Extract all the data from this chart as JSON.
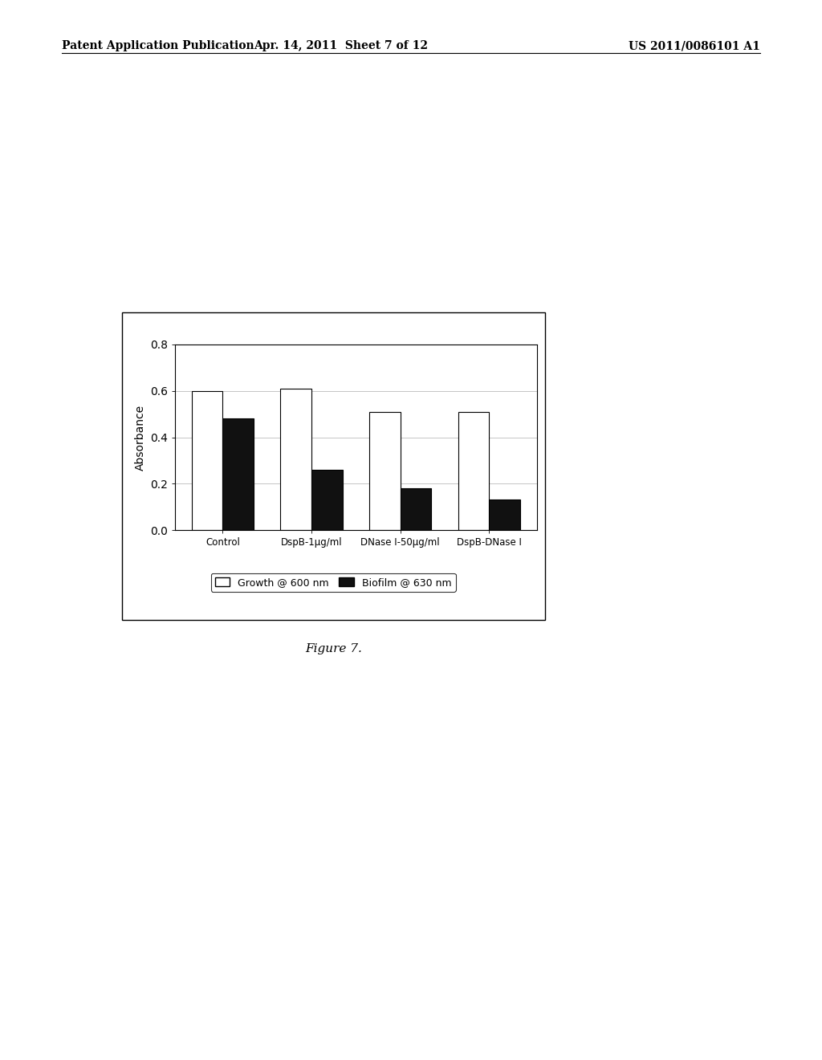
{
  "categories": [
    "Control",
    "DspB-1μg/ml",
    "DNase I-50μg/ml",
    "DspB-DNase I"
  ],
  "growth_values": [
    0.6,
    0.61,
    0.51,
    0.51
  ],
  "biofilm_values": [
    0.48,
    0.26,
    0.18,
    0.13
  ],
  "ylabel": "Absorbance",
  "ylim": [
    0,
    0.8
  ],
  "yticks": [
    0,
    0.2,
    0.4,
    0.6,
    0.8
  ],
  "legend_labels": [
    "Growth @ 600 nm",
    "Biofilm @ 630 nm"
  ],
  "growth_color": "#ffffff",
  "biofilm_color": "#111111",
  "bar_edge_color": "#000000",
  "figure_caption": "Figure 7.",
  "bar_width": 0.35,
  "header_left": "Patent Application Publication",
  "header_mid": "Apr. 14, 2011  Sheet 7 of 12",
  "header_right": "US 2011/0086101 A1",
  "background_color": "#ffffff",
  "grid_color": "#bbbbbb"
}
